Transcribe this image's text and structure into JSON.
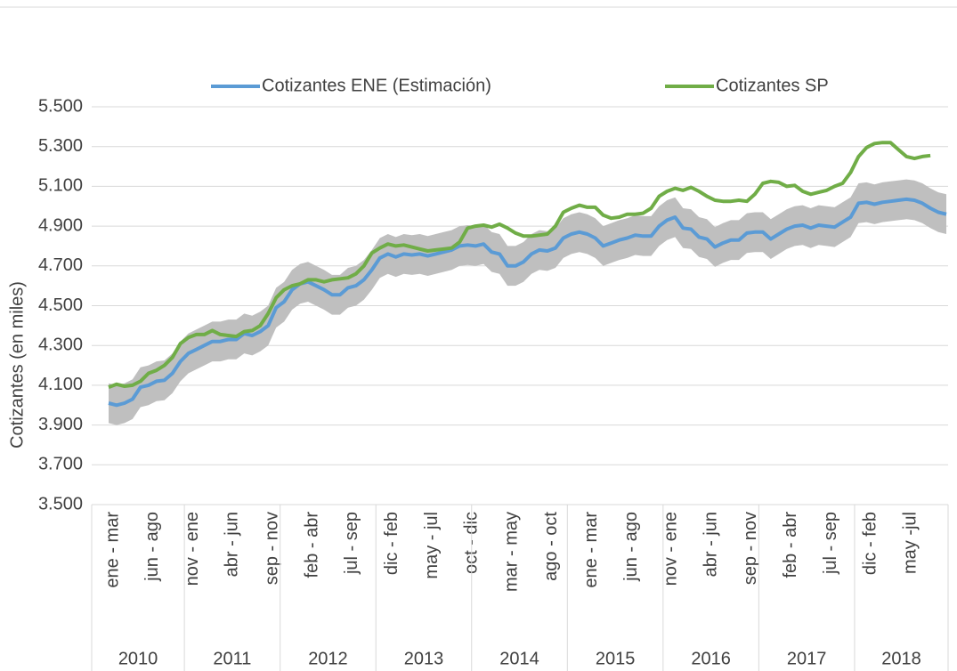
{
  "chart_data": {
    "type": "line",
    "y_axis_label": "Cotizantes (en miles)",
    "categories": [
      "ene - mar",
      null,
      null,
      null,
      null,
      "jun - ago",
      null,
      null,
      null,
      null,
      "nov - ene",
      null,
      null,
      null,
      null,
      "abr - jun",
      null,
      null,
      null,
      null,
      "sep - nov",
      null,
      null,
      null,
      null,
      "feb - abr",
      null,
      null,
      null,
      null,
      "jul - sep",
      null,
      null,
      null,
      null,
      "dic - feb",
      null,
      null,
      null,
      null,
      "may - jul",
      null,
      null,
      null,
      null,
      "oct - dic",
      null,
      null,
      null,
      null,
      "mar - may",
      null,
      null,
      null,
      null,
      "ago - oct",
      null,
      null,
      null,
      null,
      "ene - mar",
      null,
      null,
      null,
      null,
      "jun - ago",
      null,
      null,
      null,
      null,
      "nov - ene",
      null,
      null,
      null,
      null,
      "abr - jun",
      null,
      null,
      null,
      null,
      "sep - nov",
      null,
      null,
      null,
      null,
      "feb - abr",
      null,
      null,
      null,
      null,
      "jul - sep",
      null,
      null,
      null,
      null,
      "dic - feb",
      null,
      null,
      null,
      null,
      "may -jul",
      null,
      null,
      null,
      null,
      null
    ],
    "groups": [
      "2010",
      "2011",
      "2012",
      "2013",
      "2014",
      "2015",
      "2016",
      "2017",
      "2018"
    ],
    "series": [
      {
        "name": "Cotizantes ENE (Estimación)",
        "color": "#5b9bd5",
        "values": [
          4010,
          4000,
          4010,
          4030,
          4090,
          4100,
          4120,
          4125,
          4160,
          4220,
          4260,
          4280,
          4300,
          4320,
          4320,
          4330,
          4330,
          4360,
          4350,
          4370,
          4400,
          4490,
          4520,
          4580,
          4610,
          4620,
          4600,
          4580,
          4555,
          4555,
          4590,
          4600,
          4630,
          4680,
          4740,
          4760,
          4745,
          4760,
          4755,
          4760,
          4750,
          4760,
          4770,
          4780,
          4800,
          4805,
          4800,
          4810,
          4770,
          4760,
          4700,
          4700,
          4720,
          4760,
          4780,
          4775,
          4790,
          4840,
          4860,
          4870,
          4860,
          4840,
          4800,
          4815,
          4830,
          4840,
          4855,
          4850,
          4850,
          4900,
          4930,
          4945,
          4890,
          4885,
          4845,
          4835,
          4795,
          4815,
          4830,
          4830,
          4865,
          4870,
          4870,
          4835,
          4860,
          4885,
          4900,
          4905,
          4890,
          4905,
          4900,
          4895,
          4920,
          4945,
          5015,
          5020,
          5010,
          5020,
          5025,
          5030,
          5035,
          5030,
          5015,
          4990,
          4970,
          4960
        ]
      },
      {
        "name": "Cotizantes SP",
        "color": "#70ad47",
        "values": [
          4090,
          4105,
          4095,
          4100,
          4120,
          4160,
          4175,
          4200,
          4240,
          4310,
          4340,
          4355,
          4355,
          4375,
          4355,
          4350,
          4345,
          4370,
          4375,
          4400,
          4460,
          4540,
          4580,
          4600,
          4610,
          4630,
          4630,
          4620,
          4630,
          4635,
          4640,
          4660,
          4700,
          4765,
          4790,
          4810,
          4800,
          4805,
          4795,
          4785,
          4775,
          4780,
          4785,
          4790,
          4820,
          4890,
          4900,
          4905,
          4895,
          4910,
          4890,
          4865,
          4850,
          4850,
          4855,
          4860,
          4900,
          4970,
          4990,
          5005,
          4995,
          4995,
          4955,
          4940,
          4945,
          4960,
          4960,
          4965,
          4990,
          5050,
          5075,
          5090,
          5080,
          5095,
          5075,
          5050,
          5030,
          5025,
          5025,
          5030,
          5025,
          5060,
          5115,
          5125,
          5120,
          5100,
          5105,
          5075,
          5060,
          5070,
          5080,
          5100,
          5115,
          5170,
          5250,
          5295,
          5315,
          5320,
          5320,
          5285,
          5250,
          5240,
          5250,
          5255,
          null,
          null
        ]
      }
    ],
    "band": {
      "color": "#bfbfbf",
      "low": [
        3910,
        3900,
        3910,
        3930,
        3990,
        4000,
        4020,
        4025,
        4060,
        4120,
        4160,
        4180,
        4200,
        4220,
        4220,
        4230,
        4230,
        4260,
        4250,
        4270,
        4300,
        4390,
        4420,
        4480,
        4510,
        4520,
        4500,
        4480,
        4455,
        4455,
        4490,
        4500,
        4530,
        4580,
        4640,
        4660,
        4645,
        4660,
        4655,
        4660,
        4650,
        4660,
        4670,
        4680,
        4700,
        4705,
        4700,
        4710,
        4670,
        4660,
        4600,
        4600,
        4620,
        4660,
        4680,
        4675,
        4690,
        4740,
        4760,
        4770,
        4760,
        4740,
        4700,
        4715,
        4730,
        4740,
        4755,
        4750,
        4750,
        4800,
        4830,
        4845,
        4790,
        4785,
        4745,
        4735,
        4695,
        4715,
        4730,
        4730,
        4765,
        4770,
        4770,
        4735,
        4760,
        4785,
        4800,
        4805,
        4790,
        4805,
        4800,
        4795,
        4820,
        4845,
        4915,
        4920,
        4910,
        4920,
        4925,
        4930,
        4935,
        4930,
        4915,
        4890,
        4870,
        4860
      ],
      "high": [
        4110,
        4100,
        4110,
        4130,
        4190,
        4200,
        4220,
        4225,
        4260,
        4320,
        4360,
        4380,
        4400,
        4420,
        4420,
        4430,
        4430,
        4460,
        4450,
        4470,
        4500,
        4590,
        4620,
        4680,
        4710,
        4720,
        4700,
        4680,
        4655,
        4655,
        4690,
        4700,
        4730,
        4780,
        4840,
        4860,
        4845,
        4860,
        4855,
        4860,
        4850,
        4860,
        4870,
        4880,
        4900,
        4905,
        4900,
        4910,
        4870,
        4860,
        4800,
        4800,
        4820,
        4860,
        4880,
        4875,
        4890,
        4940,
        4960,
        4970,
        4960,
        4940,
        4900,
        4915,
        4930,
        4940,
        4955,
        4950,
        4950,
        5000,
        5030,
        5045,
        4990,
        4985,
        4945,
        4935,
        4895,
        4915,
        4930,
        4930,
        4965,
        4970,
        4970,
        4935,
        4960,
        4985,
        5000,
        5005,
        4990,
        5005,
        5000,
        4995,
        5020,
        5045,
        5115,
        5120,
        5110,
        5120,
        5125,
        5130,
        5135,
        5130,
        5115,
        5090,
        5070,
        5060
      ]
    },
    "ylim": [
      3500,
      5500
    ],
    "yticks": [
      {
        "value": 3500,
        "label": "3.500"
      },
      {
        "value": 3700,
        "label": "3.700"
      },
      {
        "value": 3900,
        "label": "3.900"
      },
      {
        "value": 4100,
        "label": "4.100"
      },
      {
        "value": 4300,
        "label": "4.300"
      },
      {
        "value": 4500,
        "label": "4.500"
      },
      {
        "value": 4700,
        "label": "4.700"
      },
      {
        "value": 4900,
        "label": "4.900"
      },
      {
        "value": 5100,
        "label": "5.100"
      },
      {
        "value": 5300,
        "label": "5.300"
      },
      {
        "value": 5500,
        "label": "5.500"
      }
    ],
    "grid": true,
    "legend": "top"
  }
}
